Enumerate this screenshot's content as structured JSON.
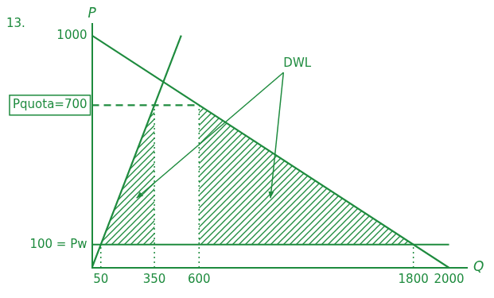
{
  "chart_data": {
    "type": "line",
    "title": "13.",
    "x_label": "Q",
    "y_label": "P",
    "xlim": [
      0,
      2100
    ],
    "ylim": [
      0,
      1050
    ],
    "xticks": [
      50,
      350,
      600,
      1800,
      2000
    ],
    "yticks": [
      {
        "value": 100,
        "label": "100 = Pw"
      },
      {
        "value": 700,
        "label": "Pquota=700"
      },
      1000
    ],
    "grid": false,
    "color": "#1e8b3e",
    "series": [
      {
        "x": [
          0,
          2000
        ],
        "values": [
          1000,
          0
        ],
        "line_style": "solid"
      },
      {
        "x": [
          0,
          500
        ],
        "values": [
          0,
          1000
        ],
        "line_style": "solid"
      },
      {
        "x": [
          0,
          2000
        ],
        "values": [
          100,
          100
        ],
        "line_style": "solid"
      },
      {
        "x": [
          0,
          600
        ],
        "values": [
          700,
          700
        ],
        "line_style": "dashed"
      },
      {
        "x": [
          50,
          50
        ],
        "values": [
          0,
          100
        ],
        "line_style": "dotted"
      },
      {
        "x": [
          350,
          350
        ],
        "values": [
          0,
          700
        ],
        "line_style": "dotted"
      },
      {
        "x": [
          600,
          600
        ],
        "values": [
          0,
          700
        ],
        "line_style": "dotted"
      },
      {
        "x": [
          1800,
          1800
        ],
        "values": [
          0,
          100
        ],
        "line_style": "dotted"
      }
    ],
    "annotations": [
      {
        "text": "DWL",
        "x": 1150,
        "y": 880,
        "regions": [
          {
            "x": [
              50,
              350,
              350
            ],
            "values": [
              100,
              100,
              700
            ]
          },
          {
            "x": [
              600,
              600,
              1800
            ],
            "values": [
              700,
              100,
              100
            ]
          }
        ]
      }
    ]
  }
}
